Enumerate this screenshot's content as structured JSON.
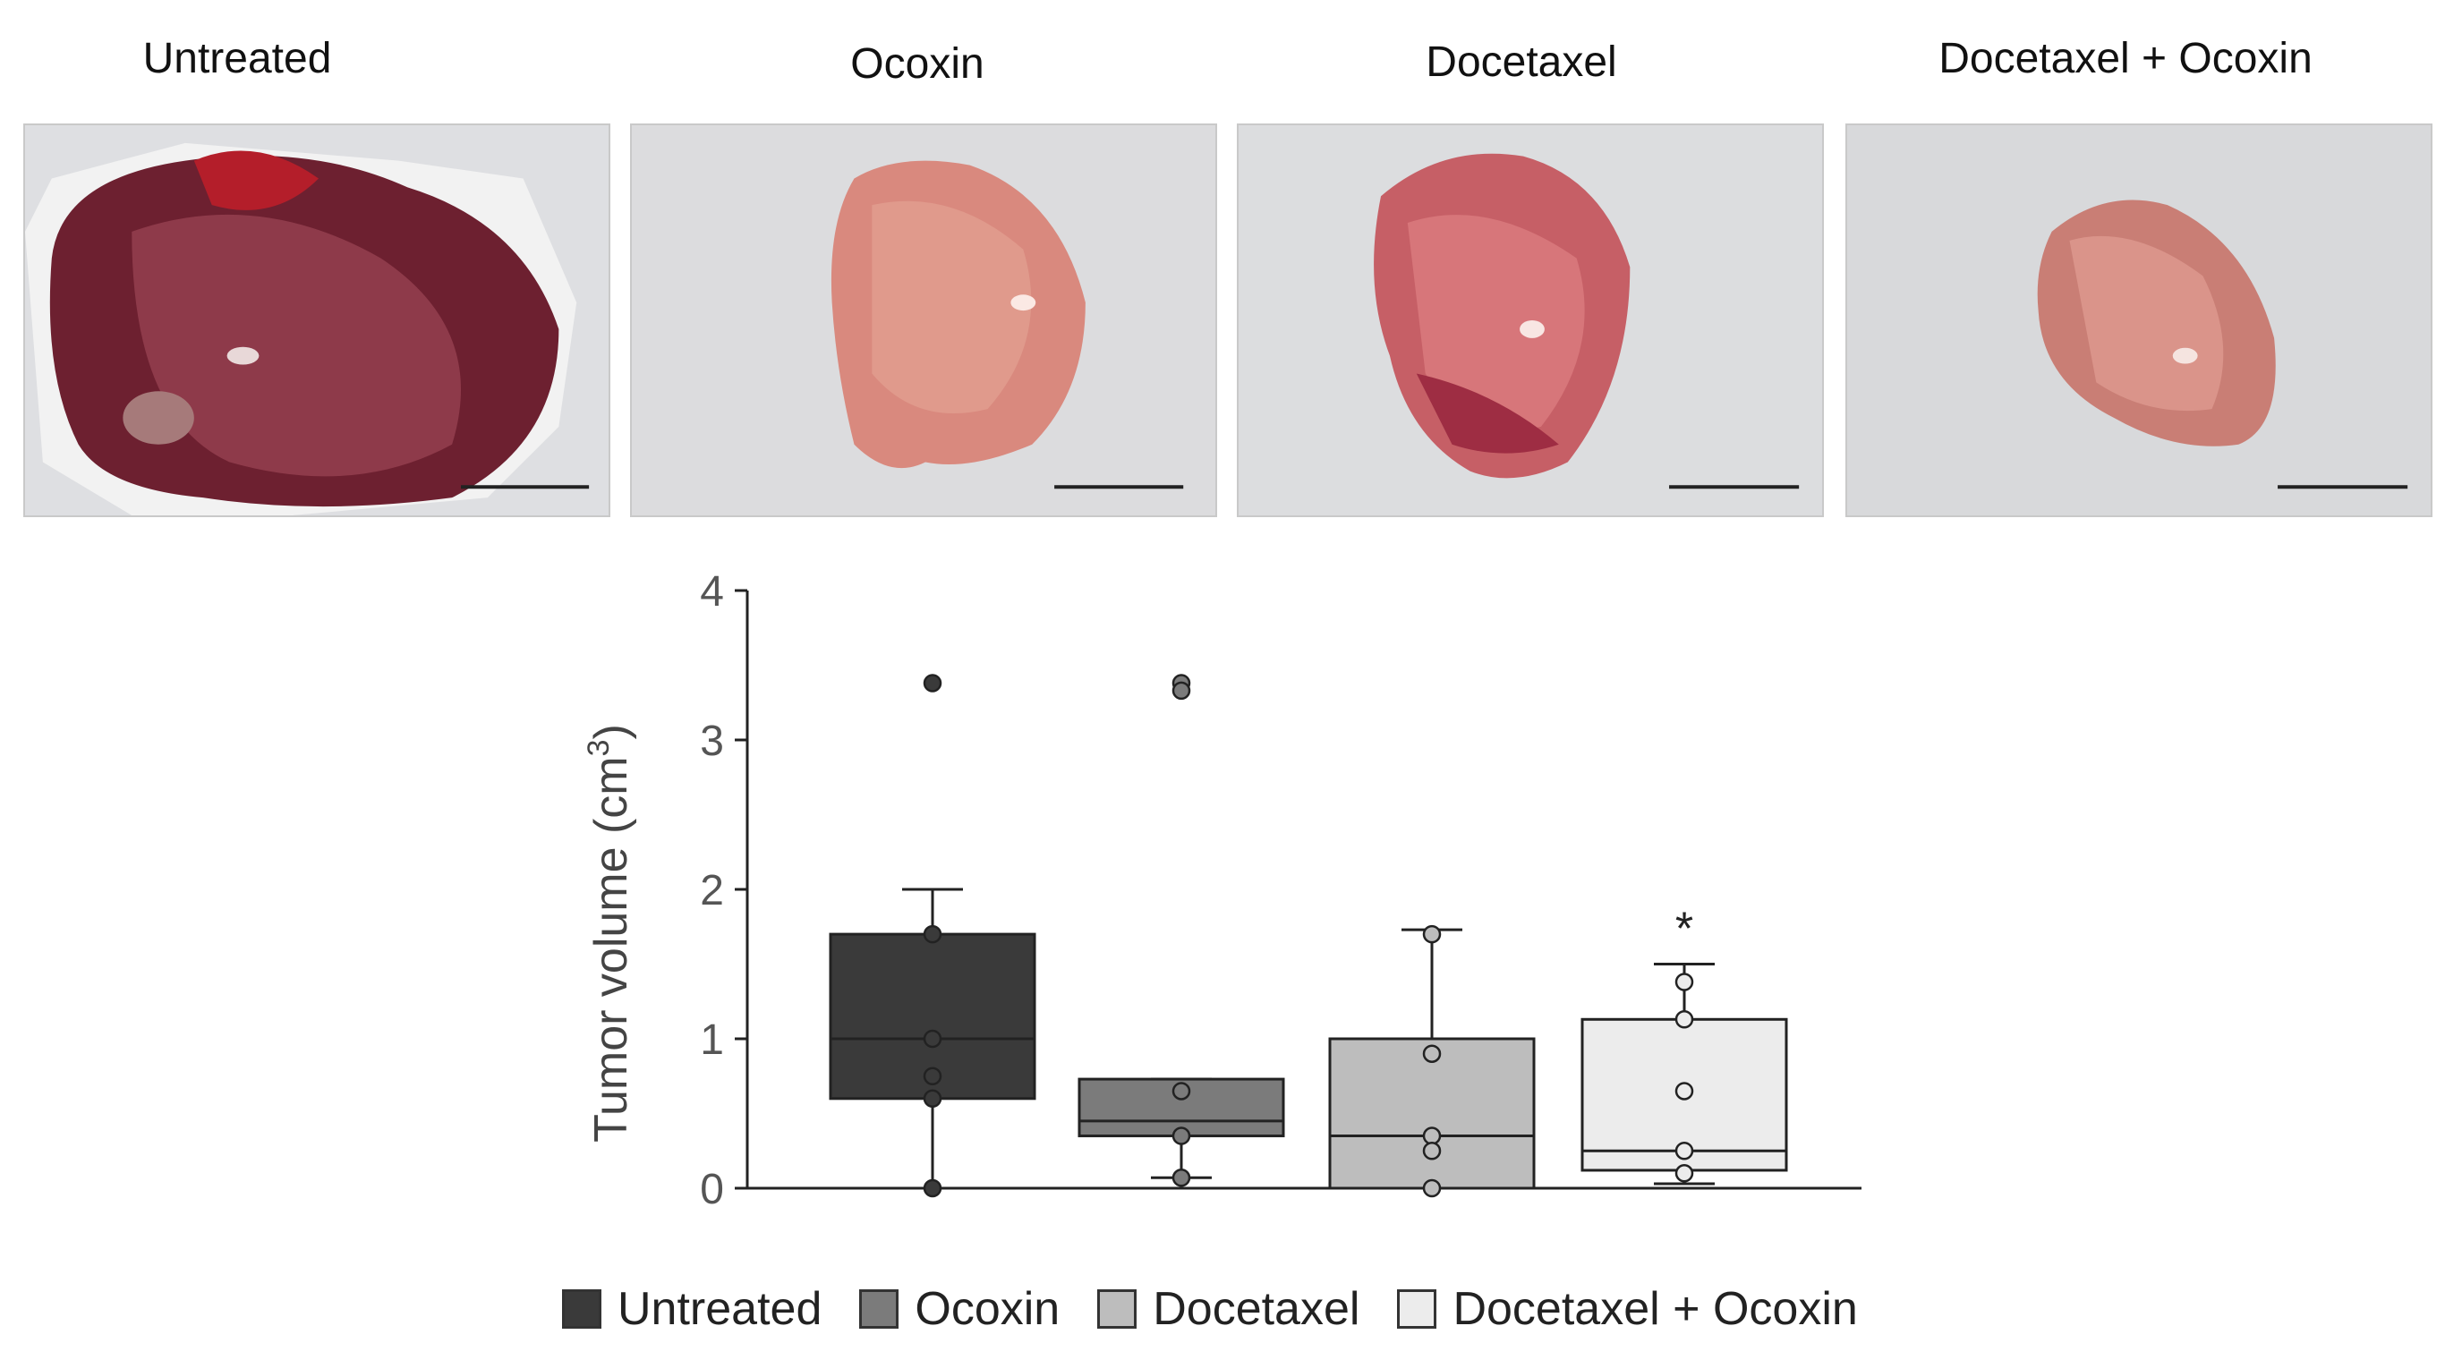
{
  "panels": [
    {
      "title": "Untreated",
      "icon": "tumor-photo-untreated"
    },
    {
      "title": "Ocoxin",
      "icon": "tumor-photo-ocoxin"
    },
    {
      "title": "Docetaxel",
      "icon": "tumor-photo-docetaxel"
    },
    {
      "title": "Docetaxel + Ocoxin",
      "icon": "tumor-photo-docetaxel-ocoxin"
    }
  ],
  "chart_data": {
    "type": "box",
    "ylabel": "Tumor volume (cm",
    "ylabel_sup": "3",
    "ylabel_close": ")",
    "ylim": [
      0,
      4
    ],
    "yticks": [
      0,
      1,
      2,
      3,
      4
    ],
    "grid": false,
    "legend_position": "bottom",
    "groups": [
      {
        "name": "Untreated",
        "color": "#3a3a3a",
        "q1": 0.6,
        "median": 1.0,
        "q3": 1.7,
        "whisker_low": 0.0,
        "whisker_high": 2.0,
        "points": [
          3.38,
          1.7,
          1.0,
          0.75,
          0.6,
          0.0
        ],
        "annotation": ""
      },
      {
        "name": "Ocoxin",
        "color": "#7b7b7b",
        "q1": 0.35,
        "median": 0.45,
        "q3": 0.73,
        "whisker_low": 0.07,
        "whisker_high": 0.73,
        "points": [
          3.38,
          3.33,
          0.65,
          0.35,
          0.07
        ],
        "annotation": ""
      },
      {
        "name": "Docetaxel",
        "color": "#bdbdbd",
        "q1": 0.0,
        "median": 0.35,
        "q3": 1.0,
        "whisker_low": 0.0,
        "whisker_high": 1.73,
        "points": [
          1.7,
          0.9,
          0.35,
          0.25,
          0.0
        ],
        "annotation": ""
      },
      {
        "name": "Docetaxel + Ocoxin",
        "color": "#ececec",
        "q1": 0.12,
        "median": 0.25,
        "q3": 1.13,
        "whisker_low": 0.03,
        "whisker_high": 1.5,
        "points": [
          1.38,
          1.13,
          0.65,
          0.25,
          0.1
        ],
        "annotation": "*"
      }
    ]
  }
}
